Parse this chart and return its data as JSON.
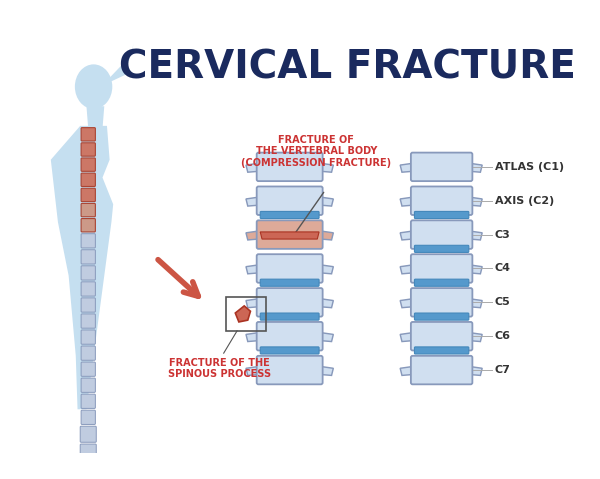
{
  "title": "CERVICAL FRACTURE",
  "title_color": "#1a2a5e",
  "title_fontsize": 28,
  "background_color": "#ffffff",
  "label_fracture_vertebral": "FRACTURE OF\nTHE VERTEBRAL BODY\n(COMPRESSION FRACTURE)",
  "label_fracture_spinous": "FRACTURE OF THE\nSPINOUS PROCESS",
  "label_color_red": "#cc3333",
  "vertebrae_labels": [
    "ATLAS (C1)",
    "AXIS (C2)",
    "C3",
    "C4",
    "C5",
    "C6",
    "C7"
  ],
  "vertebrae_label_color": "#333333",
  "bone_color": "#d0dff0",
  "bone_outline": "#8899bb",
  "disc_color": "#5599cc",
  "fracture_color": "#cc6655",
  "fracture_light": "#ddaa99",
  "silhouette_color": "#c5dff0",
  "spine_highlight_color": "#cc7766",
  "arrow_color": "#cc5544",
  "figure_width": 6.0,
  "figure_height": 4.79
}
